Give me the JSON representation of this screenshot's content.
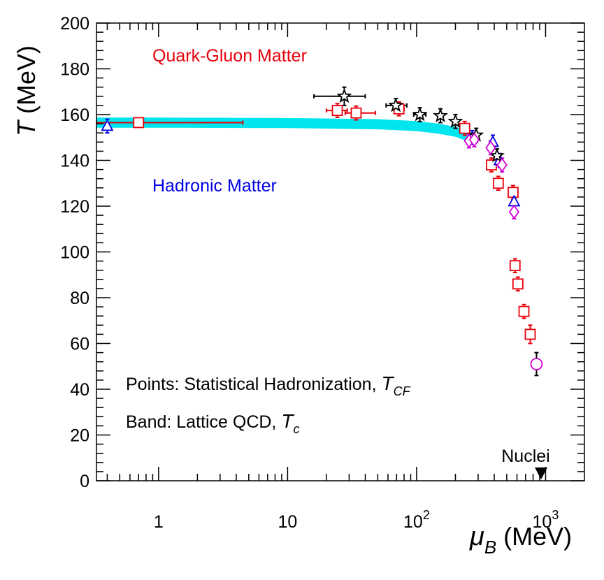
{
  "chart_data": {
    "type": "scatter",
    "xlabel_symbol": "μ",
    "xlabel_sub": "B",
    "xlabel_unit": "(MeV)",
    "ylabel_symbol": "T",
    "ylabel_unit": "(MeV)",
    "x_scale": "log",
    "xlim": [
      0.33,
      2000
    ],
    "ylim": [
      0,
      200
    ],
    "y_ticks": [
      0,
      20,
      40,
      60,
      80,
      100,
      120,
      140,
      160,
      180,
      200
    ],
    "y_tick_labels": [
      "0",
      "20",
      "40",
      "60",
      "80",
      "100",
      "120",
      "140",
      "160",
      "180",
      "200"
    ],
    "x_ticks": [
      1,
      10,
      100,
      1000
    ],
    "x_tick_labels": [
      {
        "base": "1",
        "exp": ""
      },
      {
        "base": "10",
        "exp": ""
      },
      {
        "base": "10",
        "exp": "2"
      },
      {
        "base": "10",
        "exp": "3"
      }
    ],
    "region_labels": {
      "qgp": "Quark-Gluon Matter",
      "hadronic": "Hadronic Matter"
    },
    "annotations": {
      "points_label": "Points: Statistical Hadronization, ",
      "points_T": "T",
      "points_sub": "CF",
      "band_label": "Band: Lattice QCD, ",
      "band_T": "T",
      "band_sub": "c",
      "nuclei_label": "Nuclei",
      "nuclei_x": 923
    },
    "colors": {
      "red": "#e8000b",
      "blue": "#0000e6",
      "black": "#000000",
      "magenta": "#d400d4",
      "band": "#00e5ee"
    },
    "band": {
      "name": "Lattice QCD",
      "x": [
        0.33,
        1,
        10,
        50,
        100,
        150,
        200,
        250
      ],
      "y": [
        156.5,
        156.5,
        156.3,
        155.8,
        155.0,
        153.8,
        152.5,
        150.5
      ],
      "half_width": 2.2
    },
    "series": [
      {
        "name": "squares",
        "marker": "square",
        "color": "#e8000b",
        "points": [
          {
            "x": 0.7,
            "y": 156.5,
            "xlo": 0.33,
            "xhi": 4.5,
            "ey": 1.5
          },
          {
            "x": 24.3,
            "y": 161.8,
            "xlo": 20,
            "xhi": 29,
            "ey": 3
          },
          {
            "x": 34,
            "y": 160.7,
            "xlo": 28,
            "xhi": 48,
            "ey": 3
          },
          {
            "x": 73,
            "y": 162.5,
            "xlo": 66,
            "xhi": 80,
            "ey": 3
          },
          {
            "x": 236,
            "y": 154,
            "ey": 3
          },
          {
            "x": 380,
            "y": 138,
            "ey": 3
          },
          {
            "x": 430,
            "y": 130,
            "ey": 3
          },
          {
            "x": 560,
            "y": 126,
            "ey": 3
          },
          {
            "x": 580,
            "y": 94,
            "ey": 3
          },
          {
            "x": 610,
            "y": 86,
            "ey": 3
          },
          {
            "x": 680,
            "y": 74,
            "ey": 3
          },
          {
            "x": 760,
            "y": 64,
            "ey": 4
          }
        ]
      },
      {
        "name": "triangles",
        "marker": "triangle",
        "color": "#0000e6",
        "points": [
          {
            "x": 0.4,
            "y": 155,
            "ey": 3
          },
          {
            "x": 270,
            "y": 150,
            "ey": 3
          },
          {
            "x": 390,
            "y": 148,
            "ey": 3
          },
          {
            "x": 440,
            "y": 140,
            "ey": 3
          },
          {
            "x": 570,
            "y": 122,
            "ey": 4
          }
        ]
      },
      {
        "name": "stars",
        "marker": "star",
        "color": "#000000",
        "points": [
          {
            "x": 27.5,
            "y": 168,
            "xlo": 16,
            "xhi": 40,
            "ey": 4
          },
          {
            "x": 69,
            "y": 164,
            "xlo": 58,
            "xhi": 84,
            "ey": 3
          },
          {
            "x": 106,
            "y": 160,
            "xlo": 95,
            "xhi": 118,
            "ey": 3
          },
          {
            "x": 153,
            "y": 159.5,
            "ey": 3
          },
          {
            "x": 200,
            "y": 157,
            "ey": 3
          },
          {
            "x": 290,
            "y": 151,
            "ey": 3
          },
          {
            "x": 420,
            "y": 142,
            "ey": 3
          }
        ]
      },
      {
        "name": "diamonds",
        "marker": "diamond",
        "color": "#d400d4",
        "points": [
          {
            "x": 255,
            "y": 148.5,
            "ey": 3
          },
          {
            "x": 280,
            "y": 149,
            "ey": 3
          },
          {
            "x": 375,
            "y": 145.5,
            "ey": 3
          },
          {
            "x": 460,
            "y": 138,
            "ey": 3
          },
          {
            "x": 570,
            "y": 117.5,
            "ey": 3
          }
        ]
      },
      {
        "name": "circles",
        "marker": "circle",
        "color": "#d400d4",
        "points": [
          {
            "x": 850,
            "y": 51,
            "ey": 5,
            "errcolor": "#000000"
          }
        ]
      }
    ]
  }
}
